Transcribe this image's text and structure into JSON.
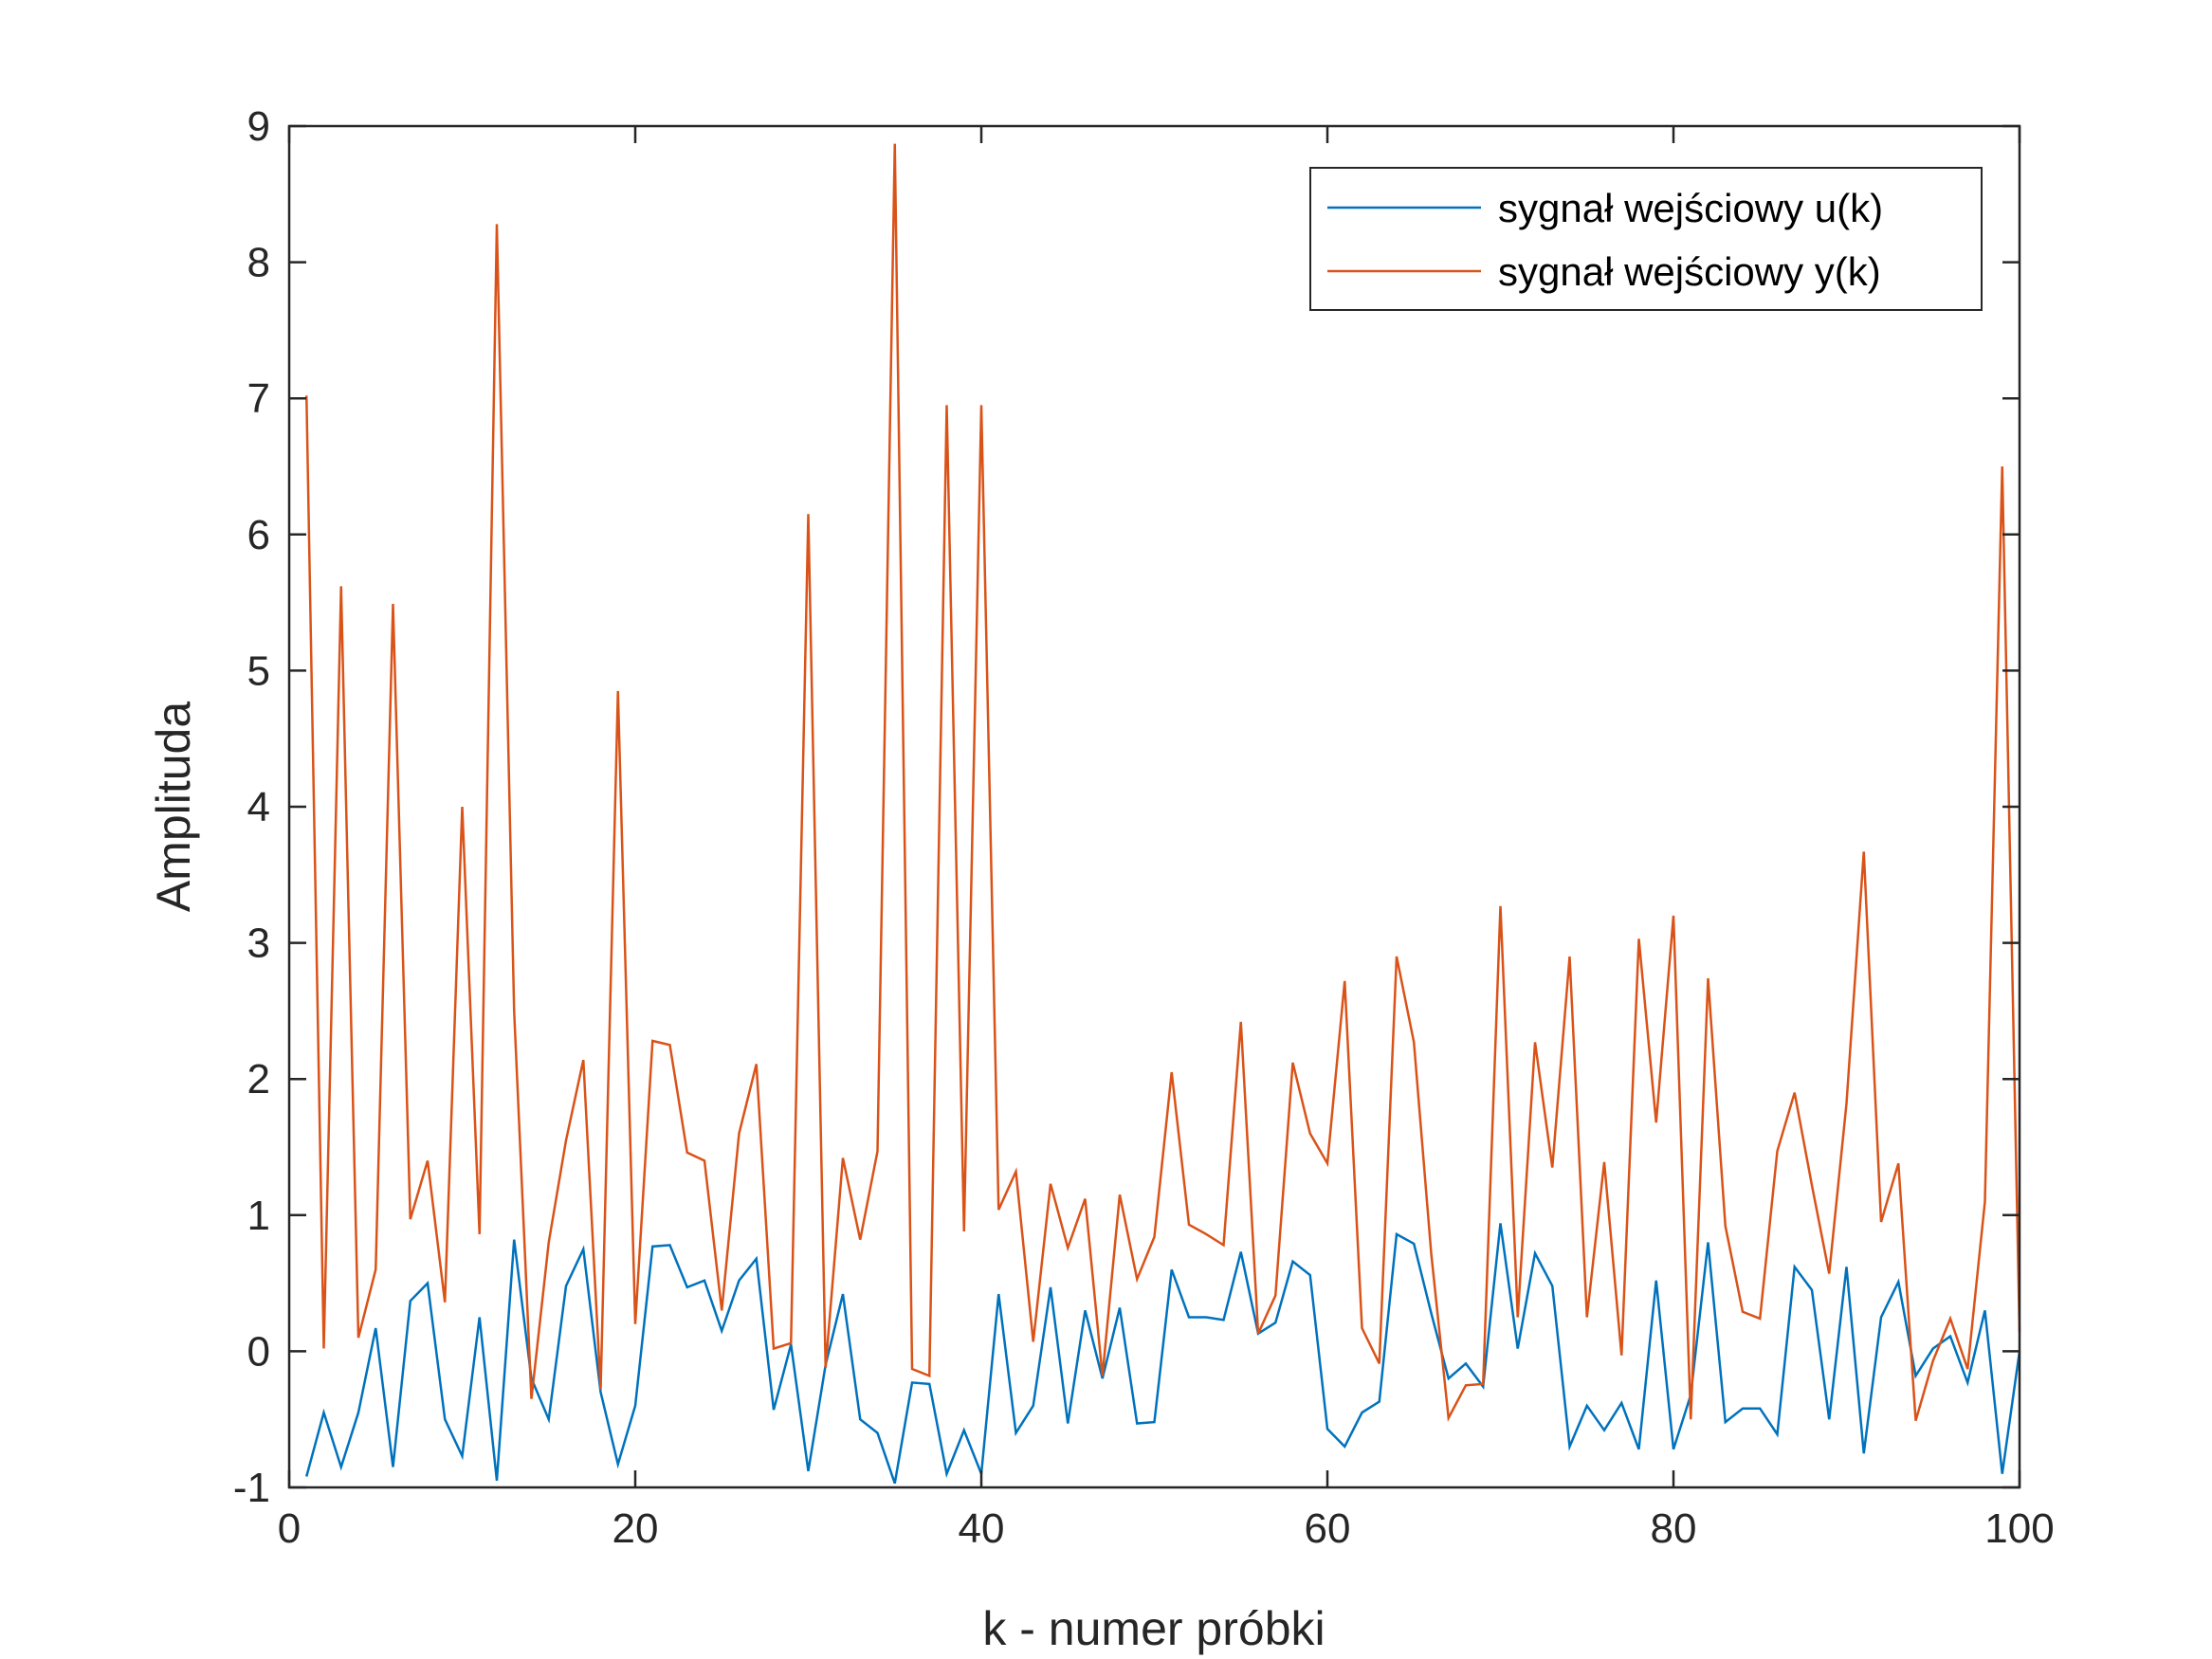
{
  "chart_data": {
    "type": "line",
    "title": "",
    "xlabel": "k - numer próbki",
    "ylabel": "Amplituda",
    "xlim": [
      0,
      100
    ],
    "ylim": [
      -1,
      9
    ],
    "xticks": [
      0,
      20,
      40,
      60,
      80,
      100
    ],
    "yticks": [
      -1,
      0,
      1,
      2,
      3,
      4,
      5,
      6,
      7,
      8,
      9
    ],
    "grid": false,
    "legend_position": "top-right",
    "x": [
      1,
      2,
      3,
      4,
      5,
      6,
      7,
      8,
      9,
      10,
      11,
      12,
      13,
      14,
      15,
      16,
      17,
      18,
      19,
      20,
      21,
      22,
      23,
      24,
      25,
      26,
      27,
      28,
      29,
      30,
      31,
      32,
      33,
      34,
      35,
      36,
      37,
      38,
      39,
      40,
      41,
      42,
      43,
      44,
      45,
      46,
      47,
      48,
      49,
      50,
      51,
      52,
      53,
      54,
      55,
      56,
      57,
      58,
      59,
      60,
      61,
      62,
      63,
      64,
      65,
      66,
      67,
      68,
      69,
      70,
      71,
      72,
      73,
      74,
      75,
      76,
      77,
      78,
      79,
      80,
      81,
      82,
      83,
      84,
      85,
      86,
      87,
      88,
      89,
      90,
      91,
      92,
      93,
      94,
      95,
      96,
      97,
      98,
      99,
      100
    ],
    "series": [
      {
        "name": "sygnał wejściowy u(k)",
        "color": "#0072BD",
        "values": [
          -0.92,
          -0.45,
          -0.85,
          -0.45,
          0.17,
          -0.85,
          0.37,
          0.5,
          -0.5,
          -0.77,
          0.25,
          -0.95,
          0.82,
          -0.2,
          -0.5,
          0.48,
          0.75,
          -0.3,
          -0.83,
          -0.4,
          0.77,
          0.78,
          0.47,
          0.52,
          0.15,
          0.52,
          0.68,
          -0.43,
          0.05,
          -0.88,
          -0.1,
          0.42,
          -0.5,
          -0.6,
          -0.97,
          -0.23,
          -0.24,
          -0.9,
          -0.58,
          -0.9,
          0.42,
          -0.6,
          -0.4,
          0.47,
          -0.53,
          0.3,
          -0.2,
          0.32,
          -0.53,
          -0.52,
          0.6,
          0.25,
          0.25,
          0.23,
          0.73,
          0.13,
          0.21,
          0.66,
          0.56,
          -0.57,
          -0.7,
          -0.45,
          -0.37,
          0.86,
          0.79,
          0.28,
          -0.2,
          -0.09,
          -0.26,
          0.94,
          0.02,
          0.72,
          0.48,
          -0.7,
          -0.4,
          -0.58,
          -0.38,
          -0.72,
          0.52,
          -0.72,
          -0.32,
          0.8,
          -0.52,
          -0.42,
          -0.42,
          -0.61,
          0.62,
          0.45,
          -0.5,
          0.62,
          -0.75,
          0.25,
          0.51,
          -0.18,
          0.02,
          0.11,
          -0.23,
          0.3,
          -0.9,
          0.0
        ]
      },
      {
        "name": "sygnał wejściowy y(k)",
        "color": "#D95319",
        "values": [
          7.02,
          0.02,
          5.62,
          0.1,
          0.6,
          5.49,
          0.97,
          1.4,
          0.36,
          4.0,
          0.86,
          8.28,
          2.5,
          -0.35,
          0.8,
          1.55,
          2.14,
          -0.28,
          4.85,
          0.2,
          2.28,
          2.25,
          1.46,
          1.4,
          0.3,
          1.6,
          2.11,
          0.02,
          0.06,
          6.15,
          -0.12,
          1.42,
          0.82,
          1.47,
          8.87,
          -0.13,
          -0.18,
          6.95,
          0.88,
          6.95,
          1.04,
          1.32,
          0.07,
          1.23,
          0.76,
          1.12,
          -0.18,
          1.15,
          0.53,
          0.84,
          2.05,
          0.93,
          0.86,
          0.78,
          2.42,
          0.13,
          0.41,
          2.12,
          1.6,
          1.38,
          2.72,
          0.17,
          -0.09,
          2.9,
          2.27,
          0.72,
          -0.49,
          -0.25,
          -0.24,
          3.27,
          0.25,
          2.27,
          1.35,
          2.9,
          0.25,
          1.39,
          -0.03,
          3.03,
          1.68,
          3.2,
          -0.5,
          2.74,
          0.92,
          0.29,
          0.24,
          1.47,
          1.9,
          1.22,
          0.57,
          1.82,
          3.67,
          0.95,
          1.38,
          -0.51,
          -0.07,
          0.24,
          -0.13,
          1.1,
          6.5,
          0.14
        ]
      }
    ]
  }
}
